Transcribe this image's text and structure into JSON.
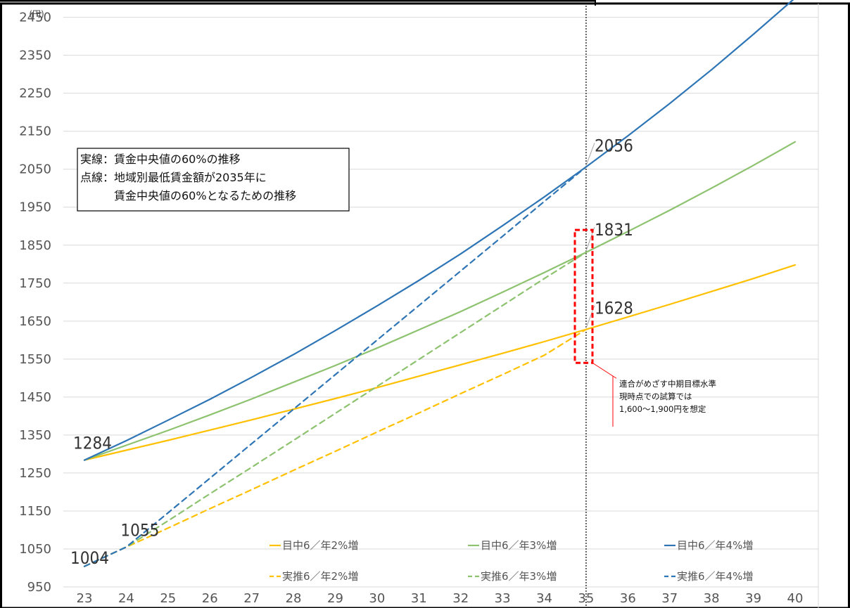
{
  "chart_data": {
    "type": "line",
    "unit_label": "(円)",
    "x": [
      23,
      24,
      25,
      26,
      27,
      28,
      29,
      30,
      31,
      32,
      33,
      34,
      35,
      36,
      37,
      38,
      39,
      40
    ],
    "x_tick_labels": [
      "23",
      "24",
      "25",
      "26",
      "27",
      "28",
      "29",
      "30",
      "31",
      "32",
      "33",
      "34",
      "35",
      "36",
      "37",
      "38",
      "39",
      "40"
    ],
    "y_tick_labels": [
      "950",
      "1050",
      "1150",
      "1250",
      "1350",
      "1450",
      "1550",
      "1650",
      "1750",
      "1850",
      "1950",
      "2050",
      "2150",
      "2250",
      "2350",
      "2450"
    ],
    "ylim": [
      950,
      2490
    ],
    "xlim": [
      23,
      40
    ],
    "grid": "horizontal",
    "reference_x": 35,
    "series": [
      {
        "name": "目中6／年2%増",
        "color": "#FFC000",
        "dash": "solid",
        "x": [
          23,
          24,
          25,
          26,
          27,
          28,
          29,
          30,
          31,
          32,
          33,
          34,
          35,
          36,
          37,
          38,
          39,
          40
        ],
        "values": [
          1284,
          1310,
          1336,
          1363,
          1390,
          1418,
          1446,
          1475,
          1505,
          1535,
          1565,
          1596,
          1628,
          1661,
          1694,
          1728,
          1762,
          1798
        ]
      },
      {
        "name": "目中6／年3%増",
        "color": "#8DC26F",
        "dash": "solid",
        "x": [
          23,
          24,
          25,
          26,
          27,
          28,
          29,
          30,
          31,
          32,
          33,
          34,
          35,
          36,
          37,
          38,
          39,
          40
        ],
        "values": [
          1284,
          1323,
          1362,
          1403,
          1445,
          1489,
          1533,
          1579,
          1627,
          1675,
          1726,
          1778,
          1831,
          1886,
          1942,
          2000,
          2060,
          2122
        ]
      },
      {
        "name": "目中6／年4%増",
        "color": "#2E75B6",
        "dash": "solid",
        "x": [
          23,
          24,
          25,
          26,
          27,
          28,
          29,
          30,
          31,
          32,
          33,
          34,
          35,
          36,
          37,
          38,
          39,
          40
        ],
        "values": [
          1284,
          1335,
          1389,
          1444,
          1502,
          1562,
          1625,
          1690,
          1757,
          1827,
          1901,
          1977,
          2056,
          2138,
          2223,
          2312,
          2405,
          2501
        ]
      },
      {
        "name": "実推6／年2%増",
        "color": "#FFC000",
        "dash": "dashed",
        "x": [
          23,
          24,
          25,
          26,
          27,
          28,
          29,
          30,
          31,
          32,
          33,
          34,
          35
        ],
        "values": [
          1004,
          1055,
          1105,
          1156,
          1206,
          1257,
          1307,
          1358,
          1408,
          1459,
          1509,
          1560,
          1628
        ]
      },
      {
        "name": "実推6／年3%増",
        "color": "#8DC26F",
        "dash": "dashed",
        "x": [
          23,
          24,
          25,
          26,
          27,
          28,
          29,
          30,
          31,
          32,
          33,
          34,
          35
        ],
        "values": [
          1004,
          1055,
          1124,
          1195,
          1265,
          1336,
          1407,
          1478,
          1549,
          1620,
          1691,
          1762,
          1831
        ]
      },
      {
        "name": "実推6／年4%増",
        "color": "#2E75B6",
        "dash": "dashed",
        "x": [
          23,
          24,
          25,
          26,
          27,
          28,
          29,
          30,
          31,
          32,
          33,
          34,
          35
        ],
        "values": [
          1004,
          1055,
          1145,
          1236,
          1327,
          1418,
          1509,
          1600,
          1691,
          1782,
          1873,
          1965,
          2056
        ]
      }
    ],
    "data_labels": [
      {
        "x": 23,
        "y": 1284,
        "text": "1284"
      },
      {
        "x": 23,
        "y": 1004,
        "text": "1004"
      },
      {
        "x": 24,
        "y": 1055,
        "text": "1055"
      },
      {
        "x": 35,
        "y": 2056,
        "text": "2056"
      },
      {
        "x": 35,
        "y": 1831,
        "text": "1831"
      },
      {
        "x": 35,
        "y": 1628,
        "text": "1628"
      }
    ],
    "annotation_box": {
      "lines": [
        "実線：賃金中央値の60%の推移",
        "点線：地域別最低賃金額が2035年に",
        "　　　賃金中央値の60%となるための推移"
      ]
    },
    "callout": {
      "lines": [
        "連合がめざす中期目標水準",
        "現時点での試算では",
        "1,600～1,900円を想定"
      ],
      "range": [
        1540,
        1890
      ],
      "color": "#FF0000"
    }
  }
}
